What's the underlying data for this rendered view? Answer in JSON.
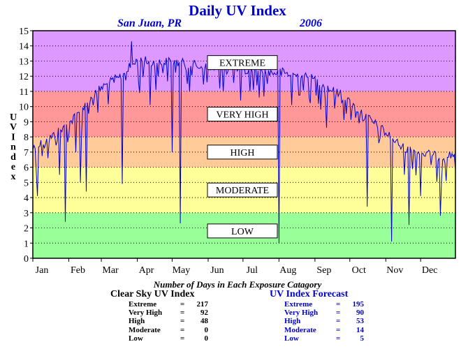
{
  "chart_data": {
    "type": "line",
    "title": "Daily UV Index",
    "location": "San Juan, PR",
    "year": "2006",
    "ylabel": "UV Index",
    "ylim": [
      0,
      15
    ],
    "yticks": [
      "0",
      "1",
      "2",
      "3",
      "4",
      "5",
      "6",
      "7",
      "8",
      "9",
      "10",
      "11",
      "12",
      "13",
      "14",
      "15"
    ],
    "xlim": [
      1,
      365
    ],
    "month_labels": [
      "Jan",
      "Feb",
      "Mar",
      "Apr",
      "May",
      "Jun",
      "Jul",
      "Aug",
      "Sep",
      "Oct",
      "Nov",
      "Dec"
    ],
    "month_start_days": [
      1,
      32,
      60,
      91,
      121,
      152,
      182,
      213,
      244,
      274,
      305,
      335
    ],
    "grid": true,
    "bands": [
      {
        "name": "LOW",
        "from": 0,
        "to": 3,
        "color": "#99ff99",
        "label_y": 1.8
      },
      {
        "name": "MODERATE",
        "from": 3,
        "to": 6,
        "color": "#ffff99",
        "label_y": 4.5
      },
      {
        "name": "HIGH",
        "from": 6,
        "to": 8,
        "color": "#ffcc99",
        "label_y": 7
      },
      {
        "name": "VERY HIGH",
        "from": 8,
        "to": 11,
        "color": "#ff9999",
        "label_y": 9.5
      },
      {
        "name": "EXTREME",
        "from": 11,
        "to": 15,
        "color": "#dd99ff",
        "label_y": 12.9
      }
    ],
    "series": [
      {
        "color": "#0000cc",
        "clear_sky_envelope": [
          {
            "day": 1,
            "value": 7.6
          },
          {
            "day": 15,
            "value": 8.2
          },
          {
            "day": 32,
            "value": 9.2
          },
          {
            "day": 46,
            "value": 10.4
          },
          {
            "day": 60,
            "value": 11.6
          },
          {
            "day": 75,
            "value": 12.2
          },
          {
            "day": 91,
            "value": 13.4
          },
          {
            "day": 106,
            "value": 13.2
          },
          {
            "day": 121,
            "value": 13.3
          },
          {
            "day": 136,
            "value": 13.1
          },
          {
            "day": 152,
            "value": 12.9
          },
          {
            "day": 167,
            "value": 12.9
          },
          {
            "day": 182,
            "value": 12.7
          },
          {
            "day": 197,
            "value": 12.6
          },
          {
            "day": 213,
            "value": 12.6
          },
          {
            "day": 228,
            "value": 12.4
          },
          {
            "day": 244,
            "value": 12.1
          },
          {
            "day": 259,
            "value": 11.4
          },
          {
            "day": 274,
            "value": 10.6
          },
          {
            "day": 289,
            "value": 9.6
          },
          {
            "day": 305,
            "value": 8.6
          },
          {
            "day": 320,
            "value": 7.6
          },
          {
            "day": 335,
            "value": 7.3
          },
          {
            "day": 350,
            "value": 7.0
          },
          {
            "day": 365,
            "value": 7.2
          }
        ],
        "dips": [
          {
            "day": 5,
            "value": 4.1
          },
          {
            "day": 14,
            "value": 6.6
          },
          {
            "day": 24,
            "value": 5.5
          },
          {
            "day": 29,
            "value": 2.4
          },
          {
            "day": 38,
            "value": 7.0
          },
          {
            "day": 42,
            "value": 5.0
          },
          {
            "day": 47,
            "value": 4.4
          },
          {
            "day": 57,
            "value": 9.6
          },
          {
            "day": 78,
            "value": 4.9
          },
          {
            "day": 93,
            "value": 10.9
          },
          {
            "day": 102,
            "value": 10.1
          },
          {
            "day": 109,
            "value": 12.0
          },
          {
            "day": 121,
            "value": 7.0
          },
          {
            "day": 128,
            "value": 2.3
          },
          {
            "day": 134,
            "value": 11.5
          },
          {
            "day": 151,
            "value": 11.6
          },
          {
            "day": 162,
            "value": 11.2
          },
          {
            "day": 180,
            "value": 10.4
          },
          {
            "day": 188,
            "value": 11.0
          },
          {
            "day": 203,
            "value": 11.5
          },
          {
            "day": 213,
            "value": 1.0
          },
          {
            "day": 224,
            "value": 10.1
          },
          {
            "day": 254,
            "value": 8.6
          },
          {
            "day": 266,
            "value": 11.1
          },
          {
            "day": 282,
            "value": 8.9
          },
          {
            "day": 289,
            "value": 3.4
          },
          {
            "day": 300,
            "value": 7.9
          },
          {
            "day": 310,
            "value": 1.1
          },
          {
            "day": 325,
            "value": 2.2
          },
          {
            "day": 335,
            "value": 4.1
          },
          {
            "day": 352,
            "value": 2.8
          }
        ],
        "peak": {
          "day": 86,
          "value": 14.3
        }
      }
    ],
    "exposure_stats": {
      "heading": "Number of Days in Each Exposure Catagory",
      "clear_sky": {
        "title": "Clear Sky UV Index",
        "rows": [
          {
            "name": "Extreme",
            "eq": "=",
            "value": "217"
          },
          {
            "name": "Very High",
            "eq": "=",
            "value": "92"
          },
          {
            "name": "High",
            "eq": "=",
            "value": "48"
          },
          {
            "name": "Moderate",
            "eq": "=",
            "value": "0"
          },
          {
            "name": "Low",
            "eq": "=",
            "value": "0"
          }
        ]
      },
      "forecast": {
        "title": "UV Index Forecast",
        "rows": [
          {
            "name": "Extreme",
            "eq": "=",
            "value": "195"
          },
          {
            "name": "Very High",
            "eq": "=",
            "value": "90"
          },
          {
            "name": "High",
            "eq": "=",
            "value": "53"
          },
          {
            "name": "Moderate",
            "eq": "=",
            "value": "14"
          },
          {
            "name": "Low",
            "eq": "=",
            "value": "5"
          }
        ]
      }
    }
  }
}
